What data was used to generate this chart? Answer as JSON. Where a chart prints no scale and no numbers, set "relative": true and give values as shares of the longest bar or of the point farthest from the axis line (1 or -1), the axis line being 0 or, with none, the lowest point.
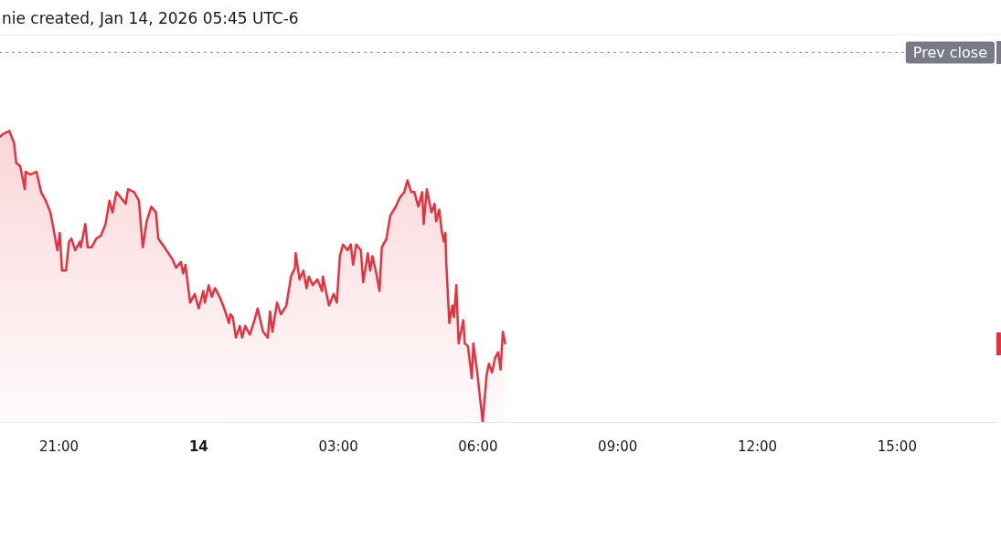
{
  "chart_data": {
    "type": "area",
    "title": "nie created, Jan 14, 2026 05:45 UTC-6",
    "relative": true,
    "color": "#e8313f",
    "x": [
      "2026-01-13T19:44",
      "2026-01-13T19:48",
      "2026-01-13T19:56",
      "2026-01-13T20:02",
      "2026-01-13T20:05",
      "2026-01-13T20:10",
      "2026-01-13T20:16",
      "2026-01-13T20:17",
      "2026-01-13T20:23",
      "2026-01-13T20:31",
      "2026-01-13T20:37",
      "2026-01-13T20:43",
      "2026-01-13T20:49",
      "2026-01-13T20:58",
      "2026-01-13T21:01",
      "2026-01-13T21:04",
      "2026-01-13T21:09",
      "2026-01-13T21:13",
      "2026-01-13T21:16",
      "2026-01-13T21:21",
      "2026-01-13T21:27",
      "2026-01-13T21:28",
      "2026-01-13T21:34",
      "2026-01-13T21:37",
      "2026-01-13T21:42",
      "2026-01-13T21:48",
      "2026-01-13T21:54",
      "2026-01-13T22:00",
      "2026-01-13T22:05",
      "2026-01-13T22:09",
      "2026-01-13T22:14",
      "2026-01-13T22:20",
      "2026-01-13T22:26",
      "2026-01-13T22:29",
      "2026-01-13T22:37",
      "2026-01-13T22:43",
      "2026-01-13T22:48",
      "2026-01-13T22:53",
      "2026-01-13T22:59",
      "2026-01-13T23:05",
      "2026-01-13T23:08",
      "2026-01-13T23:16",
      "2026-01-13T23:26",
      "2026-01-13T23:31",
      "2026-01-13T23:37",
      "2026-01-13T23:40",
      "2026-01-13T23:43",
      "2026-01-13T23:49",
      "2026-01-13T23:55",
      "2026-01-14T00:00",
      "2026-01-14T00:06",
      "2026-01-14T00:08",
      "2026-01-14T00:13",
      "2026-01-14T00:17",
      "2026-01-14T00:21",
      "2026-01-14T00:27",
      "2026-01-14T00:33",
      "2026-01-14T00:39",
      "2026-01-14T00:41",
      "2026-01-14T00:44",
      "2026-01-14T00:48",
      "2026-01-14T00:53",
      "2026-01-14T00:56",
      "2026-01-14T01:00",
      "2026-01-14T01:06",
      "2026-01-14T01:12",
      "2026-01-14T01:16",
      "2026-01-14T01:23",
      "2026-01-14T01:29",
      "2026-01-14T01:32",
      "2026-01-14T01:35",
      "2026-01-14T01:41",
      "2026-01-14T01:46",
      "2026-01-14T01:53",
      "2026-01-14T01:59",
      "2026-01-14T02:04",
      "2026-01-14T02:05",
      "2026-01-14T02:10",
      "2026-01-14T02:15",
      "2026-01-14T02:19",
      "2026-01-14T02:22",
      "2026-01-14T02:27",
      "2026-01-14T02:33",
      "2026-01-14T02:39",
      "2026-01-14T02:40",
      "2026-01-14T02:48",
      "2026-01-14T02:54",
      "2026-01-14T02:58",
      "2026-01-14T03:02",
      "2026-01-14T03:06",
      "2026-01-14T03:12",
      "2026-01-14T03:16",
      "2026-01-14T03:19",
      "2026-01-14T03:23",
      "2026-01-14T03:29",
      "2026-01-14T03:32",
      "2026-01-14T03:38",
      "2026-01-14T03:41",
      "2026-01-14T03:44",
      "2026-01-14T03:49",
      "2026-01-14T03:53",
      "2026-01-14T03:56",
      "2026-01-14T04:02",
      "2026-01-14T04:07",
      "2026-01-14T04:14",
      "2026-01-14T04:19",
      "2026-01-14T04:25",
      "2026-01-14T04:29",
      "2026-01-14T04:34",
      "2026-01-14T04:38",
      "2026-01-14T04:43",
      "2026-01-14T04:48",
      "2026-01-14T04:50",
      "2026-01-14T04:54",
      "2026-01-14T05:00",
      "2026-01-14T05:04",
      "2026-01-14T05:06",
      "2026-01-14T05:10",
      "2026-01-14T05:13",
      "2026-01-14T05:16",
      "2026-01-14T05:18",
      "2026-01-14T05:19",
      "2026-01-14T05:23",
      "2026-01-14T05:27",
      "2026-01-14T05:29",
      "2026-01-14T05:32",
      "2026-01-14T05:35",
      "2026-01-14T05:41",
      "2026-01-14T05:43",
      "2026-01-14T05:47",
      "2026-01-14T05:52",
      "2026-01-14T05:54",
      "2026-01-14T05:59",
      "2026-01-14T06:06",
      "2026-01-14T06:11",
      "2026-01-14T06:14",
      "2026-01-14T06:18",
      "2026-01-14T06:22",
      "2026-01-14T06:26",
      "2026-01-14T06:29",
      "2026-01-14T06:32",
      "2026-01-14T06:35"
    ],
    "values": [
      0.98,
      0.99,
      1,
      0.96,
      0.89,
      0.88,
      0.8,
      0.86,
      0.85,
      0.86,
      0.79,
      0.76,
      0.72,
      0.59,
      0.65,
      0.52,
      0.52,
      0.62,
      0.63,
      0.59,
      0.62,
      0.6,
      0.68,
      0.6,
      0.6,
      0.63,
      0.64,
      0.68,
      0.76,
      0.72,
      0.79,
      0.77,
      0.75,
      0.8,
      0.79,
      0.76,
      0.6,
      0.69,
      0.74,
      0.72,
      0.63,
      0.6,
      0.56,
      0.53,
      0.55,
      0.51,
      0.54,
      0.41,
      0.44,
      0.39,
      0.45,
      0.41,
      0.47,
      0.43,
      0.46,
      0.43,
      0.39,
      0.34,
      0.37,
      0.36,
      0.29,
      0.33,
      0.29,
      0.33,
      0.3,
      0.35,
      0.39,
      0.31,
      0.29,
      0.38,
      0.31,
      0.41,
      0.37,
      0.4,
      0.5,
      0.53,
      0.58,
      0.49,
      0.52,
      0.46,
      0.5,
      0.47,
      0.49,
      0.45,
      0.5,
      0.4,
      0.44,
      0.41,
      0.57,
      0.61,
      0.59,
      0.61,
      0.54,
      0.61,
      0.59,
      0.48,
      0.58,
      0.52,
      0.57,
      0.51,
      0.45,
      0.6,
      0.63,
      0.71,
      0.74,
      0.77,
      0.79,
      0.83,
      0.79,
      0.79,
      0.74,
      0.79,
      0.68,
      0.8,
      0.72,
      0.75,
      0.69,
      0.73,
      0.66,
      0.62,
      0.65,
      0.55,
      0.34,
      0.4,
      0.36,
      0.47,
      0.27,
      0.35,
      0.27,
      0.26,
      0.15,
      0.27,
      0.17,
      0,
      0.16,
      0.2,
      0.17,
      0.22,
      0.24,
      0.18,
      0.31,
      0.27
    ],
    "xlim": [
      "2026-01-13T19:44",
      "2026-01-14T17:08"
    ],
    "xticks": [
      {
        "value": "2026-01-13T21:00",
        "label": "21:00"
      },
      {
        "value": "2026-01-14T00:00",
        "label": "14"
      },
      {
        "value": "2026-01-14T03:00",
        "label": "03:00"
      },
      {
        "value": "2026-01-14T06:00",
        "label": "06:00"
      },
      {
        "value": "2026-01-14T09:00",
        "label": "09:00"
      },
      {
        "value": "2026-01-14T12:00",
        "label": "12:00"
      },
      {
        "value": "2026-01-14T15:00",
        "label": "15:00"
      }
    ],
    "ref_lines": [
      {
        "axis": "y",
        "value": 1.27,
        "label": "Prev close",
        "color": "#787b86",
        "line_style": "dotted"
      }
    ]
  }
}
